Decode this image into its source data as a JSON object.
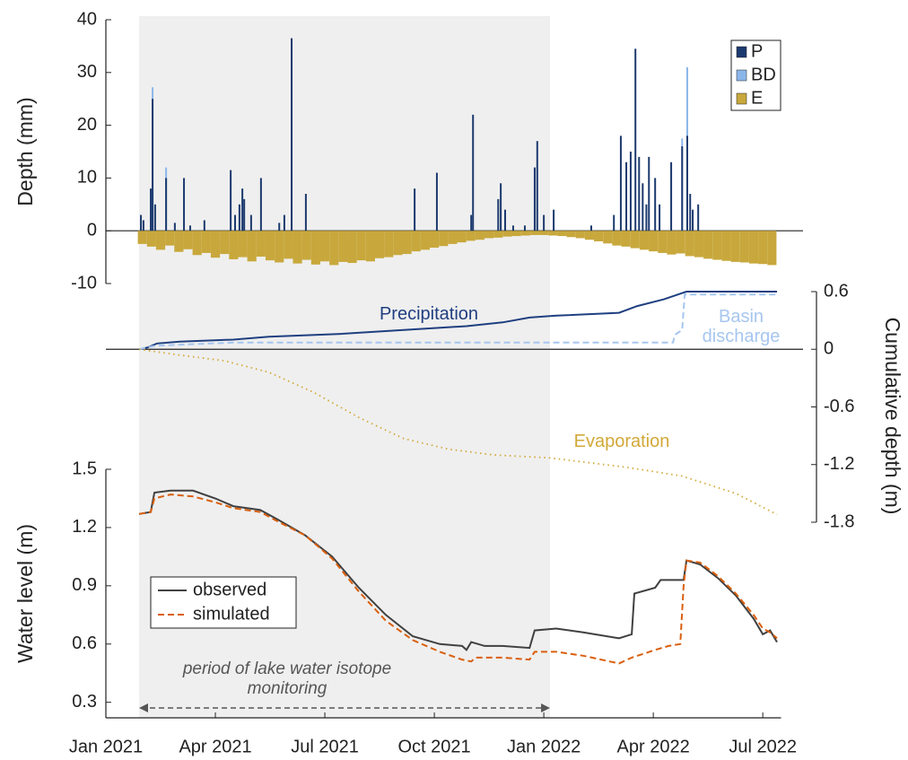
{
  "chart_data": [
    {
      "type": "bar",
      "ylabel": "Depth (mm)",
      "xlim": [
        0,
        18.5
      ],
      "ylim": [
        -10,
        40
      ],
      "yticks": [
        -10,
        0,
        10,
        20,
        30,
        40
      ],
      "legend": "upper right",
      "series": [
        {
          "name": "P",
          "color": "#1c3a6e",
          "x": [
            0.96,
            1.03,
            1.23,
            1.28,
            1.35,
            1.65,
            1.89,
            2.14,
            2.31,
            2.7,
            3.42,
            3.54,
            3.66,
            3.74,
            3.79,
            3.98,
            4.25,
            4.75,
            4.89,
            5.09,
            5.48,
            8.46,
            9.07,
            10.01,
            10.06,
            10.75,
            10.82,
            10.94,
            11.16,
            11.48,
            11.75,
            11.82,
            12.0,
            12.27,
            13.3,
            13.92,
            14.11,
            14.26,
            14.38,
            14.51,
            14.61,
            14.71,
            14.81,
            14.88,
            15.05,
            15.17,
            15.49,
            15.79,
            15.93,
            16.01,
            16.08,
            16.23
          ],
          "values": [
            3,
            2,
            8,
            25,
            5,
            10,
            1.5,
            10,
            1,
            2,
            11.5,
            3,
            5,
            8,
            6,
            3,
            10,
            1.5,
            3,
            36.5,
            7,
            8,
            11,
            3,
            22,
            6,
            9,
            4,
            1,
            1,
            12,
            17,
            3,
            4,
            1,
            3,
            18,
            13,
            15,
            34.5,
            14,
            9,
            5,
            14,
            10,
            5,
            13,
            16,
            18,
            7,
            4,
            5
          ]
        },
        {
          "name": "BD",
          "color": "#8cb6ea",
          "x": [
            1.28,
            1.65,
            15.79,
            15.93
          ],
          "values": [
            27.2,
            12,
            17.5,
            31
          ]
        },
        {
          "name": "E",
          "color": "#c8a83c",
          "x": [
            1.0,
            1.25,
            1.5,
            1.75,
            2.0,
            2.25,
            2.5,
            2.75,
            3.0,
            3.25,
            3.5,
            3.75,
            4.0,
            4.25,
            4.5,
            4.75,
            5.0,
            5.25,
            5.5,
            5.75,
            6.0,
            6.25,
            6.5,
            6.75,
            7.0,
            7.25,
            7.5,
            7.75,
            8.0,
            8.25,
            8.5,
            8.75,
            9.0,
            9.25,
            9.5,
            9.75,
            10.0,
            10.25,
            10.5,
            10.75,
            11.0,
            11.25,
            11.5,
            11.75,
            12.0,
            12.25,
            12.5,
            12.75,
            13.0,
            13.25,
            13.5,
            13.75,
            14.0,
            14.25,
            14.5,
            14.75,
            15.0,
            15.25,
            15.5,
            15.75,
            16.0,
            16.25,
            16.5,
            16.75,
            17.0,
            17.25,
            17.5,
            17.75,
            18.0,
            18.25
          ],
          "values": [
            -2.5,
            -3.0,
            -3.6,
            -2.8,
            -4.0,
            -3.5,
            -4.6,
            -4.2,
            -5.1,
            -4.4,
            -5.4,
            -5.0,
            -5.8,
            -4.9,
            -5.6,
            -6.0,
            -5.3,
            -6.2,
            -5.5,
            -6.4,
            -5.8,
            -6.5,
            -5.9,
            -6.1,
            -5.6,
            -5.8,
            -5.2,
            -5.0,
            -4.6,
            -4.4,
            -3.9,
            -3.6,
            -3.2,
            -2.9,
            -2.5,
            -2.2,
            -1.9,
            -1.7,
            -1.4,
            -1.3,
            -1.1,
            -1.0,
            -0.9,
            -0.8,
            -0.8,
            -0.9,
            -1.0,
            -1.2,
            -1.4,
            -1.7,
            -2.0,
            -2.4,
            -2.8,
            -3.0,
            -3.3,
            -3.6,
            -3.9,
            -4.2,
            -4.5,
            -4.3,
            -4.8,
            -5.0,
            -5.3,
            -5.5,
            -5.7,
            -5.9,
            -6.0,
            -6.2,
            -6.3,
            -6.5
          ]
        }
      ]
    },
    {
      "type": "line",
      "ylabel": "Cumulative depth (m)",
      "xlim": [
        0,
        18.5
      ],
      "ylim": [
        -1.8,
        0.6
      ],
      "yticks": [
        -1.8,
        -1.2,
        -0.6,
        0,
        0.6
      ],
      "series": [
        {
          "name": "Precipitation",
          "color": "#1f3f80",
          "style": "solid",
          "x": [
            0.91,
            1.16,
            1.4,
            2.02,
            3.49,
            4.47,
            6.44,
            8.16,
            9.88,
            10.87,
            11.61,
            12.34,
            14.06,
            14.56,
            15.29,
            15.91,
            18.39
          ],
          "values": [
            0,
            0.02,
            0.06,
            0.08,
            0.1,
            0.13,
            0.16,
            0.2,
            0.24,
            0.28,
            0.33,
            0.35,
            0.38,
            0.45,
            0.52,
            0.6,
            0.6
          ]
        },
        {
          "name": "Basin discharge",
          "color": "#a6c6ef",
          "style": "dashed",
          "x": [
            0.91,
            1.28,
            1.52,
            3.49,
            15.54,
            15.59,
            15.79,
            15.86,
            18.39
          ],
          "values": [
            0,
            0.03,
            0.04,
            0.07,
            0.07,
            0.15,
            0.2,
            0.57,
            0.57
          ]
        },
        {
          "name": "Evaporation",
          "color": "#d2a838",
          "style": "dotted",
          "x": [
            0.91,
            2.02,
            3.25,
            4.47,
            5.7,
            6.93,
            8.16,
            9.39,
            10.62,
            12.17,
            14.31,
            15.79,
            17.26,
            18.39
          ],
          "values": [
            0,
            -0.06,
            -0.12,
            -0.24,
            -0.45,
            -0.71,
            -0.93,
            -1.04,
            -1.1,
            -1.13,
            -1.23,
            -1.32,
            -1.5,
            -1.72
          ]
        }
      ]
    },
    {
      "type": "line",
      "ylabel": "Water level (m)",
      "xlim": [
        0,
        18.5
      ],
      "ylim": [
        0.22,
        1.5
      ],
      "yticks": [
        0.3,
        0.6,
        0.9,
        1.2,
        1.5
      ],
      "xticks": [
        {
          "value": 0,
          "label": "Jan 2021"
        },
        {
          "value": 3,
          "label": "Apr 2021"
        },
        {
          "value": 6,
          "label": "Jul 2021"
        },
        {
          "value": 9,
          "label": "Oct 2021"
        },
        {
          "value": 12,
          "label": "Jan 2022"
        },
        {
          "value": 15,
          "label": "Apr 2022"
        },
        {
          "value": 18,
          "label": "Jul 2022"
        }
      ],
      "legend": "center left",
      "shade": [
        0.91,
        12.17
      ],
      "annotation": "period of lake water isotope monitoring",
      "series": [
        {
          "name": "observed",
          "color": "#404040",
          "style": "solid",
          "x": [
            0.91,
            1.23,
            1.33,
            1.77,
            2.39,
            3.0,
            3.49,
            4.23,
            4.72,
            5.46,
            6.2,
            6.93,
            7.67,
            8.41,
            9.15,
            9.76,
            9.88,
            10.01,
            10.38,
            10.87,
            11.61,
            11.75,
            12.34,
            13.08,
            14.06,
            14.41,
            14.48,
            15.05,
            15.2,
            15.83,
            15.91,
            16.28,
            16.77,
            17.26,
            17.75,
            18.0,
            18.2,
            18.39
          ],
          "values": [
            1.27,
            1.28,
            1.38,
            1.39,
            1.39,
            1.35,
            1.31,
            1.29,
            1.24,
            1.16,
            1.05,
            0.89,
            0.75,
            0.64,
            0.6,
            0.59,
            0.57,
            0.61,
            0.59,
            0.59,
            0.58,
            0.67,
            0.68,
            0.66,
            0.63,
            0.65,
            0.86,
            0.89,
            0.93,
            0.93,
            1.03,
            1.01,
            0.94,
            0.85,
            0.73,
            0.65,
            0.67,
            0.61
          ]
        },
        {
          "name": "simulated",
          "color": "#d95f0e",
          "style": "dashed",
          "x": [
            0.91,
            1.23,
            1.33,
            1.77,
            2.39,
            3.0,
            3.49,
            4.23,
            4.72,
            5.46,
            6.2,
            6.93,
            7.67,
            8.41,
            9.15,
            9.76,
            10.01,
            10.13,
            10.87,
            11.61,
            11.75,
            12.34,
            13.08,
            14.06,
            14.41,
            15.05,
            15.42,
            15.74,
            15.83,
            15.91,
            16.28,
            16.77,
            17.26,
            17.75,
            18.0,
            18.2,
            18.39
          ],
          "values": [
            1.27,
            1.28,
            1.35,
            1.37,
            1.36,
            1.33,
            1.3,
            1.28,
            1.23,
            1.16,
            1.04,
            0.87,
            0.72,
            0.62,
            0.56,
            0.52,
            0.51,
            0.53,
            0.53,
            0.52,
            0.56,
            0.56,
            0.54,
            0.5,
            0.53,
            0.57,
            0.59,
            0.6,
            0.9,
            1.03,
            1.02,
            0.95,
            0.86,
            0.75,
            0.68,
            0.66,
            0.63
          ]
        }
      ]
    }
  ]
}
